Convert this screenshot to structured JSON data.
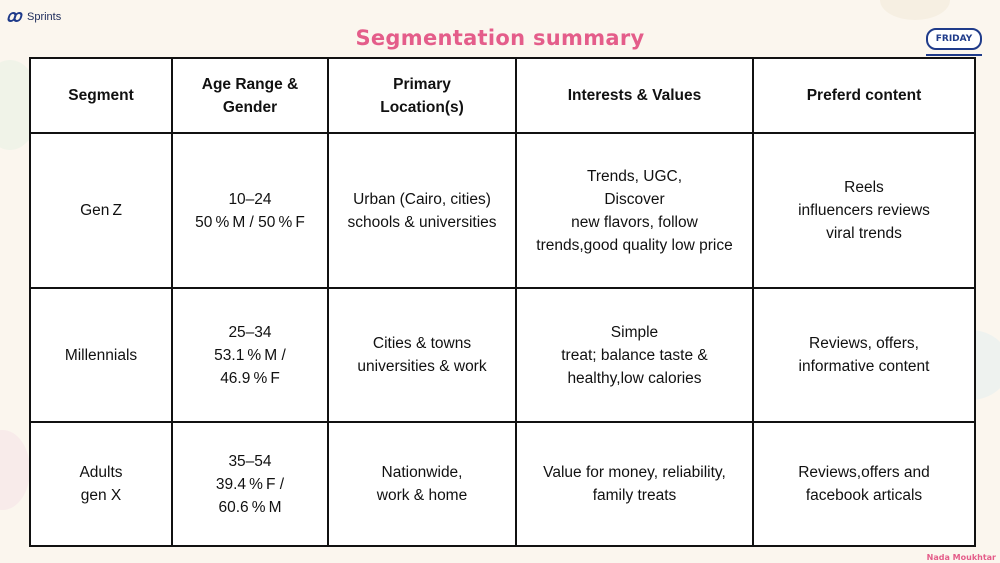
{
  "brand": {
    "name": "Sprints",
    "icon": "sprints-logo-icon"
  },
  "title": "Segmentation summary",
  "logo": {
    "text": "FRIDAY",
    "icon": "friday-logo-icon"
  },
  "table": {
    "headers": [
      [
        "Segment"
      ],
      [
        "Age Range &",
        "Gender"
      ],
      [
        "Primary",
        "Location(s)"
      ],
      [
        "Interests & Values"
      ],
      [
        "Preferd content"
      ]
    ],
    "rows": [
      [
        [
          "Gen Z"
        ],
        [
          "10–24",
          "50 % M / 50 % F"
        ],
        [
          "Urban (Cairo, cities)",
          "schools & universities"
        ],
        [
          "Trends, UGC,",
          "Discover",
          "new flavors, follow",
          "trends,good quality low price"
        ],
        [
          "Reels",
          "influencers reviews",
          "viral trends"
        ]
      ],
      [
        [
          "Millennials"
        ],
        [
          "25–34",
          "53.1 % M /",
          "46.9 % F"
        ],
        [
          "Cities & towns",
          "universities & work"
        ],
        [
          "Simple",
          "treat; balance taste &",
          "healthy,low calories"
        ],
        [
          "Reviews, offers,",
          "informative content"
        ]
      ],
      [
        [
          "Adults",
          "gen X"
        ],
        [
          "35–54",
          "39.4 % F /",
          "60.6 % M"
        ],
        [
          "Nationwide,",
          "work & home"
        ],
        [
          "Value for money, reliability,",
          "family treats"
        ],
        [
          "Reviews,offers and",
          "facebook articals"
        ]
      ]
    ]
  },
  "footer": {
    "author": "Nada Moukhtar"
  },
  "colors": {
    "title": "#e45d8a",
    "brand": "#1f3b8a",
    "border": "#111111",
    "background": "#fbf6ee"
  }
}
